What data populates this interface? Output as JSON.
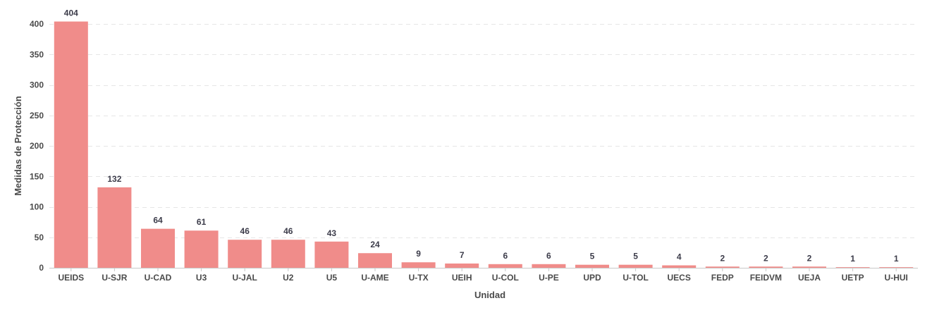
{
  "chart_data": {
    "type": "bar",
    "xlabel": "Unidad",
    "ylabel": "Medidas de Protección",
    "ylim": [
      0,
      400
    ],
    "yticks": [
      0,
      50,
      100,
      150,
      200,
      250,
      300,
      350,
      400
    ],
    "grid": true,
    "bar_color": "#f08c8a",
    "categories": [
      "UEIDS",
      "U-SJR",
      "U-CAD",
      "U3",
      "U-JAL",
      "U2",
      "U5",
      "U-AME",
      "U-TX",
      "UEIH",
      "U-COL",
      "U-PE",
      "UPD",
      "U-TOL",
      "UECS",
      "FEDP",
      "FEIDVM",
      "UEJA",
      "UETP",
      "U-HUI"
    ],
    "values": [
      404,
      132,
      64,
      61,
      46,
      46,
      43,
      24,
      9,
      7,
      6,
      6,
      5,
      5,
      4,
      2,
      2,
      2,
      1,
      1
    ]
  }
}
